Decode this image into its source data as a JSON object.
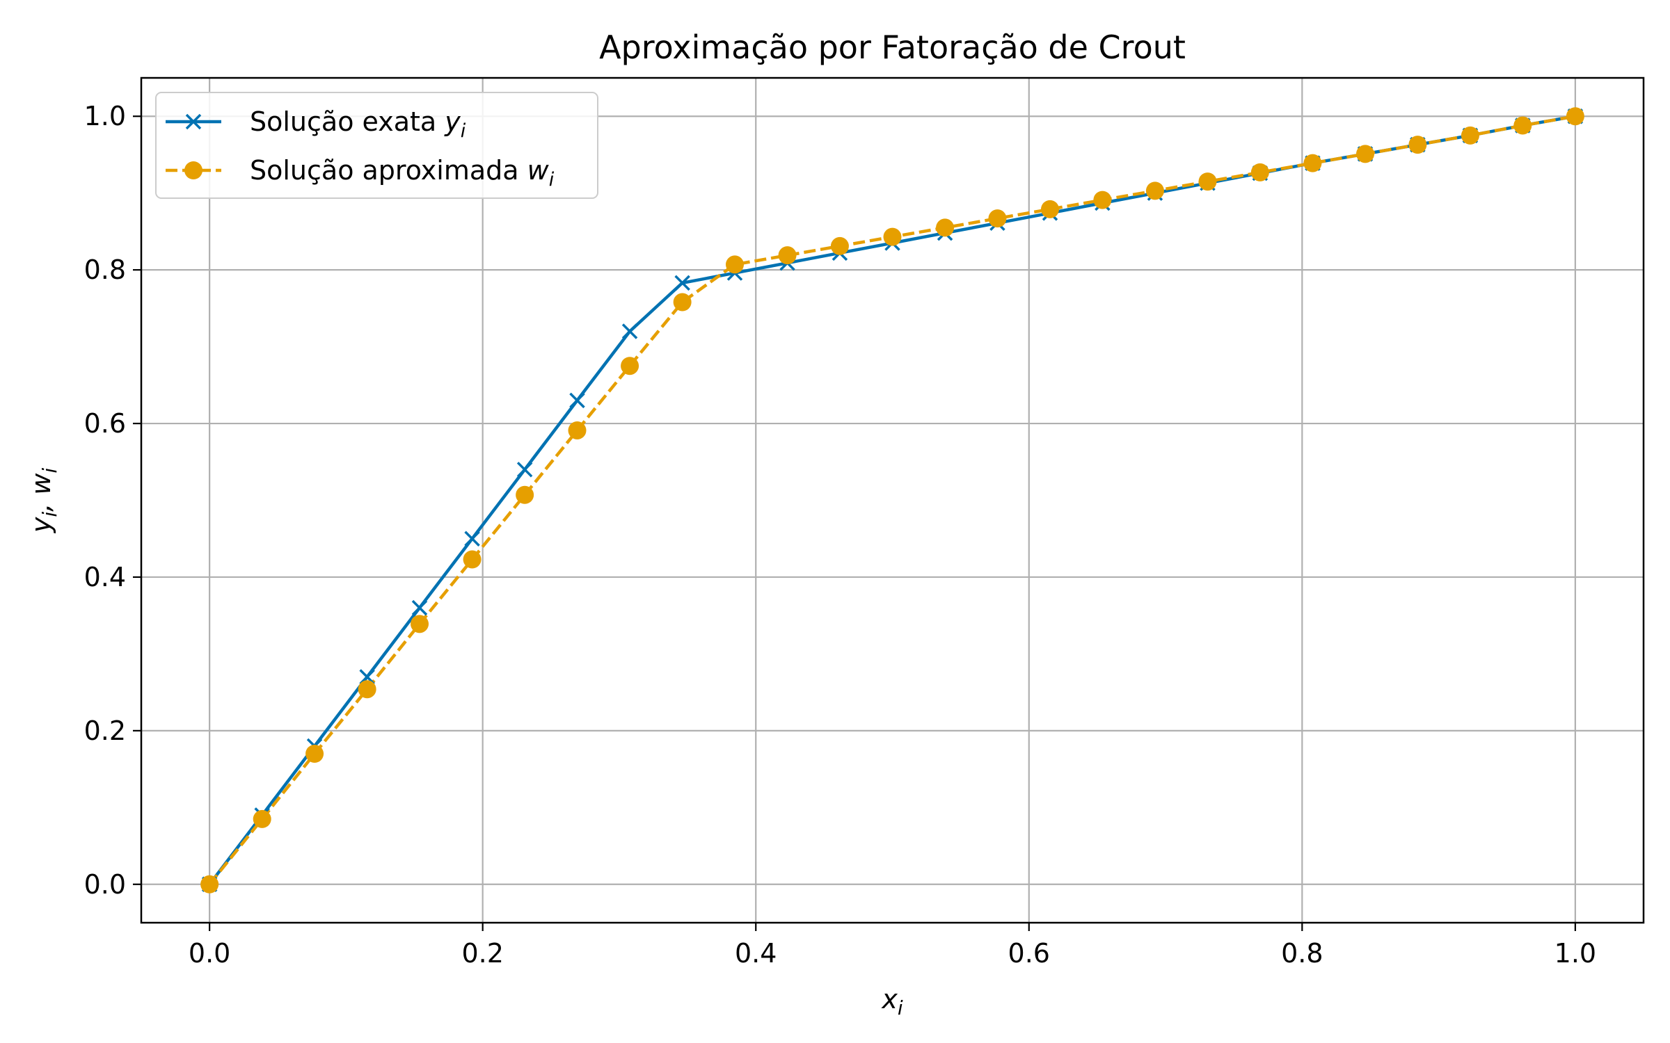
{
  "chart_data": {
    "type": "line",
    "title": "Aproximação por Fatoração de Crout",
    "xlabel": "x_i",
    "ylabel": "y_i, w_i",
    "xlim": [
      -0.05,
      1.05
    ],
    "ylim": [
      -0.05,
      1.05
    ],
    "xticks": [
      "0.0",
      "0.2",
      "0.4",
      "0.6",
      "0.8",
      "1.0"
    ],
    "yticks": [
      "0.0",
      "0.2",
      "0.4",
      "0.6",
      "0.8",
      "1.0"
    ],
    "grid": true,
    "legend_position": "top-left",
    "x": [
      0.0,
      0.0385,
      0.0769,
      0.1154,
      0.1538,
      0.1923,
      0.2308,
      0.2692,
      0.3077,
      0.3462,
      0.3846,
      0.4231,
      0.4615,
      0.5,
      0.5385,
      0.5769,
      0.6154,
      0.6538,
      0.6923,
      0.7308,
      0.7692,
      0.8077,
      0.8462,
      0.8846,
      0.9231,
      0.9615,
      1.0
    ],
    "series": [
      {
        "name": "Solução exata y_i",
        "legend_text": "Solução exata ",
        "legend_var": "y",
        "legend_sub": "i",
        "color": "#0072b2",
        "marker": "x",
        "linestyle": "solid",
        "values": [
          0.0,
          0.09,
          0.18,
          0.27,
          0.36,
          0.45,
          0.54,
          0.63,
          0.72,
          0.783,
          0.796,
          0.809,
          0.822,
          0.835,
          0.848,
          0.861,
          0.874,
          0.887,
          0.9,
          0.913,
          0.926,
          0.939,
          0.951,
          0.963,
          0.975,
          0.988,
          1.0
        ]
      },
      {
        "name": "Solução aproximada w_i",
        "legend_text": "Solução aproximada ",
        "legend_var": "w",
        "legend_sub": "i",
        "color": "#e69f00",
        "marker": "o",
        "linestyle": "dashed",
        "values": [
          0.0,
          0.085,
          0.17,
          0.254,
          0.339,
          0.423,
          0.507,
          0.591,
          0.675,
          0.758,
          0.807,
          0.819,
          0.831,
          0.843,
          0.855,
          0.867,
          0.879,
          0.891,
          0.903,
          0.915,
          0.927,
          0.939,
          0.951,
          0.963,
          0.975,
          0.988,
          1.0
        ]
      }
    ]
  }
}
